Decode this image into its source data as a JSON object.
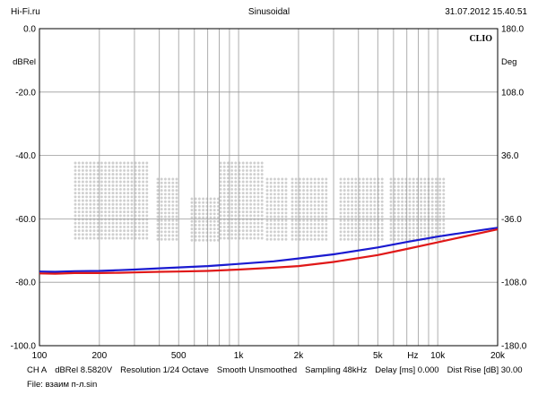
{
  "header": {
    "left": "Hi-Fi.ru",
    "center": "Sinusoidal",
    "right": "31.07.2012 15.40.51"
  },
  "chart_data": {
    "type": "line",
    "brand": "CLIO",
    "x_scale": "log",
    "xlim": [
      100,
      20000
    ],
    "ylim": [
      -100,
      0
    ],
    "y2lim": [
      -180,
      180
    ],
    "ylabel": "dBRel",
    "y2label": "Deg",
    "grid": true,
    "x_ticks": [
      {
        "value": 100,
        "label": "100"
      },
      {
        "value": 200,
        "label": "200"
      },
      {
        "value": 500,
        "label": "500"
      },
      {
        "value": 1000,
        "label": "1k"
      },
      {
        "value": 2000,
        "label": "2k"
      },
      {
        "value": 5000,
        "label": "5k"
      },
      {
        "value": 7500,
        "label": "Hz"
      },
      {
        "value": 10000,
        "label": "10k"
      },
      {
        "value": 20000,
        "label": "20k"
      }
    ],
    "y_ticks": [
      {
        "value": 0,
        "label": "0.0"
      },
      {
        "value": -20,
        "label": "-20.0"
      },
      {
        "value": -40,
        "label": "-40.0"
      },
      {
        "value": -60,
        "label": "-60.0"
      },
      {
        "value": -80,
        "label": "-80.0"
      },
      {
        "value": -100,
        "label": "-100.0"
      }
    ],
    "y2_ticks": [
      {
        "value": 180,
        "label": "180.0"
      },
      {
        "value": 108,
        "label": "108.0"
      },
      {
        "value": 36,
        "label": "36.0"
      },
      {
        "value": -36,
        "label": "-36.0"
      },
      {
        "value": -108,
        "label": "-108.0"
      },
      {
        "value": -180,
        "label": "-180.0"
      }
    ],
    "series": [
      {
        "color": "#1a1ad0",
        "points": [
          [
            100,
            -76.6
          ],
          [
            120,
            -76.7
          ],
          [
            150,
            -76.5
          ],
          [
            200,
            -76.4
          ],
          [
            250,
            -76.2
          ],
          [
            300,
            -76.0
          ],
          [
            400,
            -75.6
          ],
          [
            500,
            -75.3
          ],
          [
            700,
            -74.9
          ],
          [
            1000,
            -74.2
          ],
          [
            1500,
            -73.4
          ],
          [
            2000,
            -72.5
          ],
          [
            3000,
            -71.2
          ],
          [
            5000,
            -69.0
          ],
          [
            7000,
            -67.3
          ],
          [
            10000,
            -65.6
          ],
          [
            14000,
            -64.2
          ],
          [
            20000,
            -62.8
          ]
        ]
      },
      {
        "color": "#e01818",
        "points": [
          [
            100,
            -77.2
          ],
          [
            120,
            -77.3
          ],
          [
            150,
            -77.1
          ],
          [
            200,
            -77.1
          ],
          [
            250,
            -77.0
          ],
          [
            300,
            -76.9
          ],
          [
            400,
            -76.7
          ],
          [
            500,
            -76.6
          ],
          [
            700,
            -76.4
          ],
          [
            1000,
            -76.0
          ],
          [
            1500,
            -75.4
          ],
          [
            2000,
            -74.9
          ],
          [
            3000,
            -73.6
          ],
          [
            5000,
            -71.4
          ],
          [
            7000,
            -69.5
          ],
          [
            10000,
            -67.4
          ],
          [
            14000,
            -65.4
          ],
          [
            20000,
            -63.3
          ]
        ]
      }
    ]
  },
  "footer": {
    "items": [
      "CH A",
      "dBRel 8.5820V",
      "Resolution 1/24 Octave",
      "Smooth Unsmoothed",
      "Sampling 48kHz",
      "Delay [ms] 0.000",
      "Dist Rise [dB] 30.00"
    ],
    "file": "File: взаим п-л.sin"
  }
}
